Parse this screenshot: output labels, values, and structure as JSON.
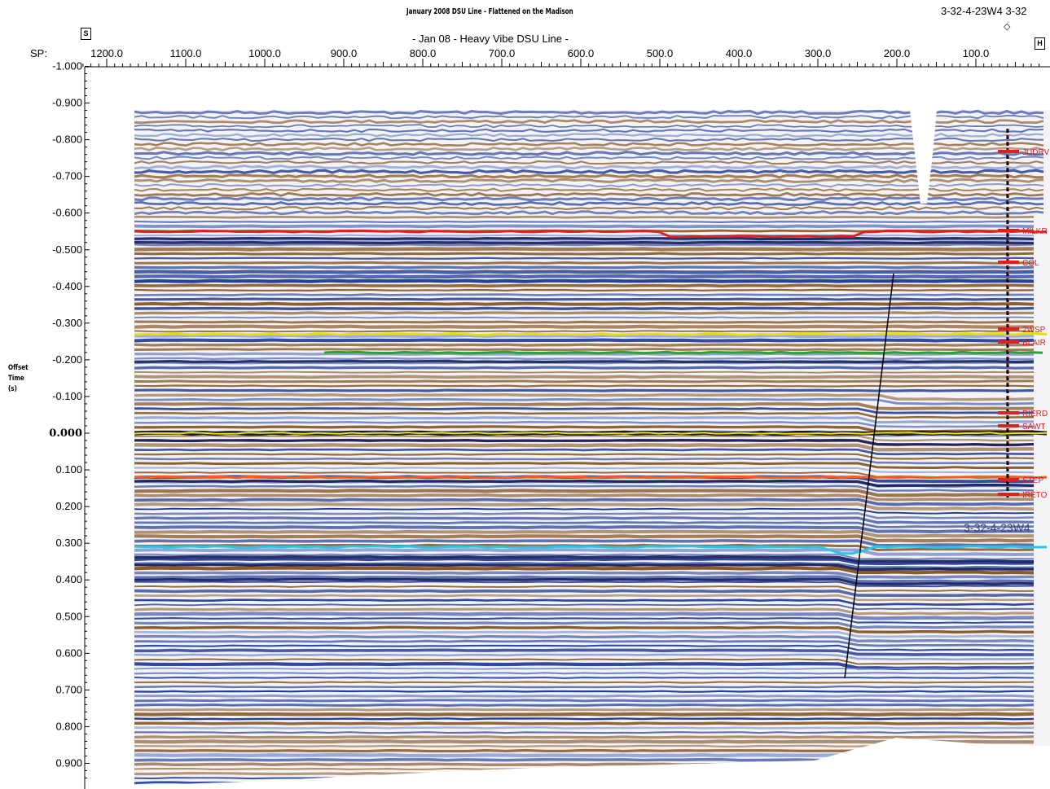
{
  "header": {
    "title": "January 2008 DSU Line - Flattened on the Madison",
    "subtitle": "- Jan 08 - Heavy Vibe DSU Line -",
    "well_label_top": "3-32-4-23W4 3-32",
    "well_symbol": "◇",
    "start_marker": "S",
    "end_marker": "H"
  },
  "axes": {
    "sp_label": "SP:",
    "sp_ticks": [
      "1200.0",
      "1100.0",
      "1000.0",
      "900.0",
      "800.0",
      "700.0",
      "600.0",
      "500.0",
      "400.0",
      "300.0",
      "200.0",
      "100.0"
    ],
    "sp_values": [
      1200,
      1100,
      1000,
      900,
      800,
      700,
      600,
      500,
      400,
      300,
      200,
      100
    ],
    "time_ticks": [
      "-1.000",
      "-0.900",
      "-0.800",
      "-0.700",
      "-0.600",
      "-0.500",
      "-0.400",
      "-0.300",
      "-0.200",
      "-0.100",
      "0.000",
      "0.100",
      "0.200",
      "0.300",
      "0.400",
      "0.500",
      "0.600",
      "0.700",
      "0.800",
      "0.900"
    ],
    "time_values": [
      -1.0,
      -0.9,
      -0.8,
      -0.7,
      -0.6,
      -0.5,
      -0.4,
      -0.3,
      -0.2,
      -0.1,
      0.0,
      0.1,
      0.2,
      0.3,
      0.4,
      0.5,
      0.6,
      0.7,
      0.8,
      0.9
    ],
    "y_title_lines": [
      "Offset",
      "Time",
      "(s)"
    ]
  },
  "horizons": [
    {
      "color": "#e02020",
      "time": -0.55
    },
    {
      "color": "#e8e000",
      "time": -0.27
    },
    {
      "color": "#2ea03a",
      "time": -0.22
    },
    {
      "color": "#1a1a1a",
      "time": 0.0
    },
    {
      "color": "#e8e000",
      "time": 0.0
    },
    {
      "color": "#ff5a1a",
      "time": 0.12
    },
    {
      "color": "#27c6e8",
      "time": 0.31
    }
  ],
  "formation_tops": [
    "JUDRV",
    "MILKR",
    "COL",
    "2WSP",
    "BLAIR",
    "RIERD",
    "SAWT",
    "STEP",
    "IRETO"
  ],
  "well_annotation": "3-32-4-23W4",
  "colors": {
    "blue": "#1f3a94",
    "brown": "#8a5a2a",
    "top_marker": "#e02020"
  }
}
